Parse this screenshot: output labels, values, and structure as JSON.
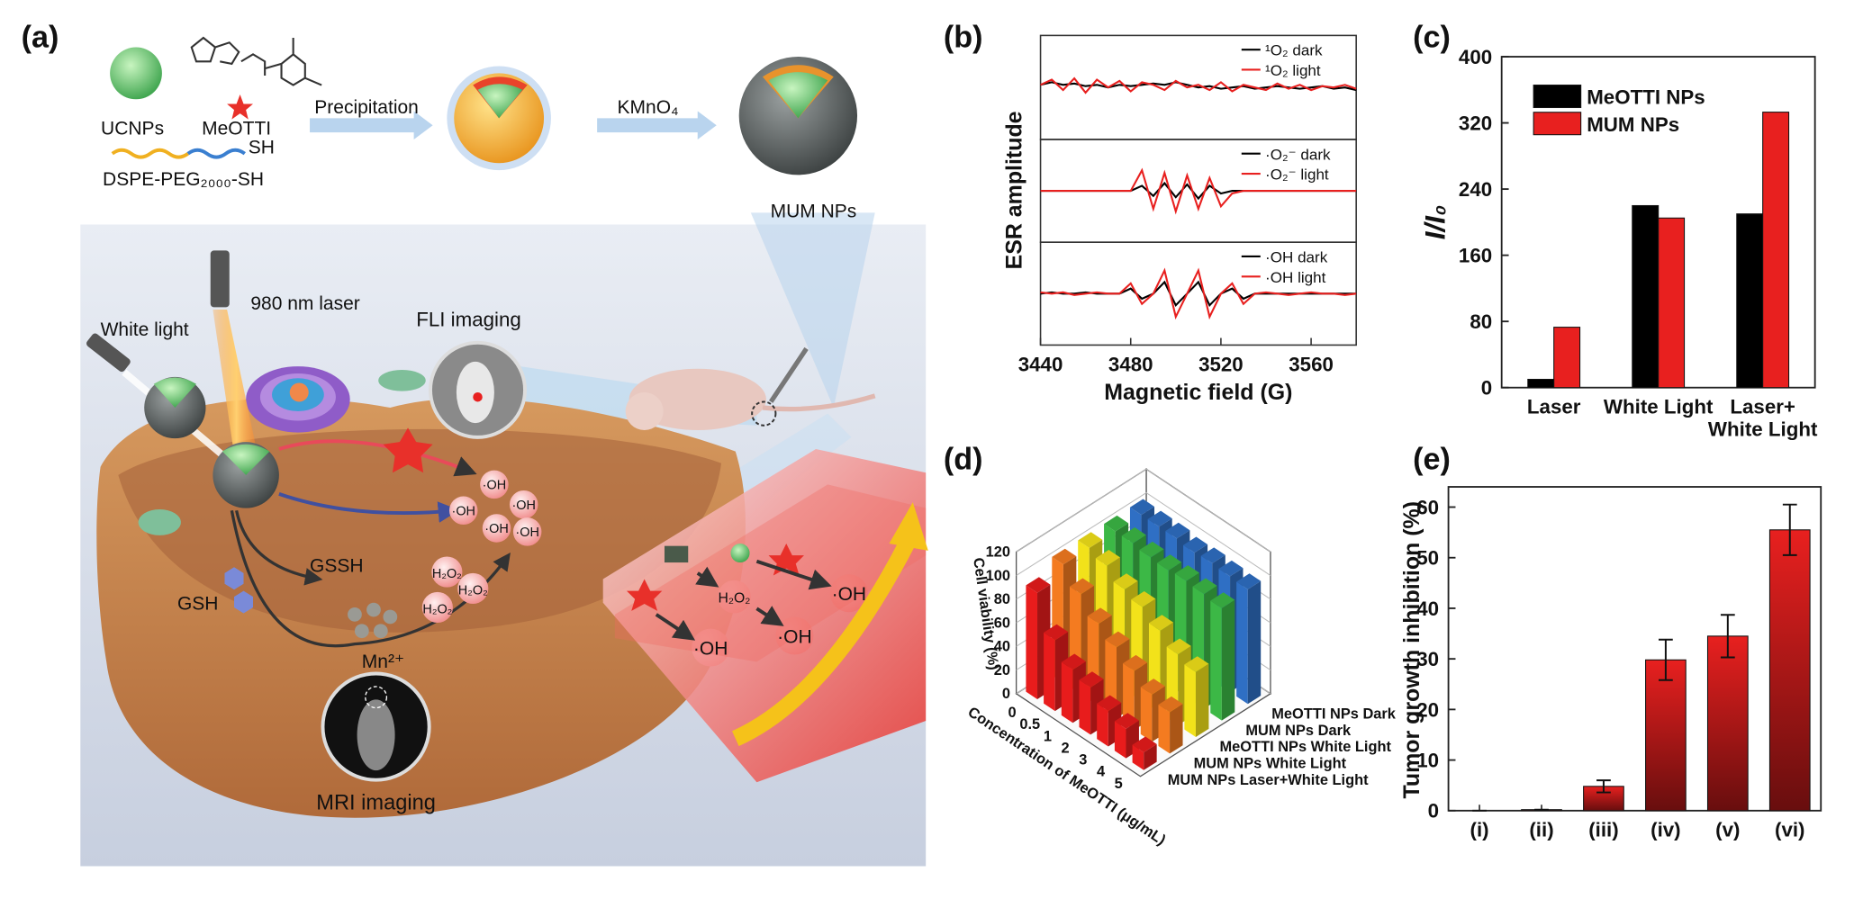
{
  "illustration": {
    "label": "(a)",
    "ucnps": "UCNPs",
    "meotti": "MeOTTI",
    "sh": "SH",
    "dspe": "DSPE-PEG₂₀₀₀-SH",
    "precipitation": "Precipitation",
    "kmno4": "KMnO₄",
    "mum_nps": "MUM NPs",
    "laser": "980 nm laser",
    "white_light": "White light",
    "fli": "FLI imaging",
    "gssh": "GSSH",
    "gsh": "GSH",
    "mn": "Mn²⁺",
    "h2o2": [
      "H₂O₂",
      "H₂O₂",
      "H₂O₂",
      "H₂O₂"
    ],
    "oh": [
      "·OH",
      "·OH",
      "·OH",
      "·OH",
      "·OH",
      "·OH",
      "·OH",
      "·OH"
    ],
    "mri": "MRI imaging"
  },
  "chart_data": [
    {
      "label": "(b)",
      "type": "esr",
      "y_label": "ESR amplitude",
      "x_label": "Magnetic field (G)",
      "x": [
        3440,
        3445,
        3450,
        3455,
        3460,
        3465,
        3470,
        3475,
        3480,
        3485,
        3490,
        3495,
        3500,
        3505,
        3510,
        3515,
        3520,
        3525,
        3530,
        3535,
        3540,
        3545,
        3550,
        3555,
        3560,
        3565,
        3570,
        3575,
        3580
      ],
      "xlim": [
        3440,
        3580
      ],
      "xticks": [
        3440,
        3480,
        3520,
        3560
      ],
      "panels": [
        {
          "ylim": [
            -2,
            2
          ],
          "series": [
            {
              "name": "¹O₂ dark",
              "color": "#000000",
              "values": [
                0.1,
                0.2,
                0.1,
                0.15,
                0.05,
                0.1,
                0.0,
                0.1,
                0.05,
                0.1,
                0.15,
                0.1,
                0.2,
                0.1,
                0.0,
                0.05,
                -0.05,
                0.0,
                0.05,
                -0.05,
                0.0,
                0.05,
                0.0,
                -0.05,
                0.0,
                0.05,
                -0.05,
                0.0,
                -0.1
              ]
            },
            {
              "name": "¹O₂ light",
              "color": "#e8201f",
              "values": [
                0.1,
                0.3,
                -0.1,
                0.35,
                -0.2,
                0.3,
                0.0,
                0.25,
                -0.15,
                0.2,
                0.1,
                -0.1,
                0.25,
                0.0,
                0.1,
                -0.1,
                0.2,
                -0.15,
                0.1,
                0.0,
                -0.1,
                0.15,
                -0.05,
                0.1,
                -0.1,
                0.05,
                0.0,
                0.1,
                -0.05
              ]
            }
          ]
        },
        {
          "ylim": [
            -2,
            2
          ],
          "series": [
            {
              "name": "·O₂⁻ dark",
              "color": "#000000",
              "values": [
                0,
                0,
                0,
                0,
                0,
                0,
                0,
                0,
                0,
                0.2,
                -0.2,
                0.3,
                -0.25,
                0.25,
                -0.3,
                0.2,
                -0.1,
                0,
                0,
                0,
                0,
                0,
                0,
                0,
                0,
                0,
                0,
                0,
                0
              ]
            },
            {
              "name": "·O₂⁻ light",
              "color": "#e8201f",
              "values": [
                0,
                0,
                0,
                0,
                0,
                0,
                0,
                0,
                0,
                0.8,
                -0.7,
                0.7,
                -0.8,
                0.6,
                -0.7,
                0.5,
                -0.6,
                -0.1,
                0,
                0,
                0,
                0,
                0,
                0,
                0,
                0,
                0,
                0,
                0
              ]
            }
          ]
        },
        {
          "ylim": [
            -2,
            2
          ],
          "series": [
            {
              "name": "·OH dark",
              "color": "#000000",
              "values": [
                0,
                0.05,
                0,
                0,
                0.05,
                0,
                0,
                0,
                0.2,
                -0.2,
                0,
                0.45,
                -0.45,
                0,
                0.45,
                -0.45,
                0,
                0.2,
                -0.2,
                0,
                0,
                0,
                0,
                0,
                0,
                0,
                0,
                0,
                0
              ]
            },
            {
              "name": "·OH light",
              "color": "#e8201f",
              "values": [
                0.05,
                0,
                0.05,
                -0.05,
                0,
                0.05,
                0,
                0,
                0.4,
                -0.4,
                0,
                0.9,
                -0.9,
                0,
                0.9,
                -0.9,
                0,
                0.4,
                -0.4,
                0,
                0.05,
                0,
                -0.05,
                0,
                0.05,
                0,
                0,
                -0.05,
                0
              ]
            }
          ]
        }
      ]
    },
    {
      "label": "(c)",
      "type": "bar",
      "y_label": "I/I₀",
      "categories": [
        "Laser",
        "White Light",
        "Laser+\nWhite Light"
      ],
      "series": [
        {
          "name": "MeOTTI NPs",
          "color": "#000000",
          "values": [
            10,
            220,
            210
          ]
        },
        {
          "name": "MUM NPs",
          "color": "#e8201f",
          "values": [
            73,
            205,
            333
          ]
        }
      ],
      "ylim": [
        0,
        400
      ],
      "yticks": [
        0,
        80,
        160,
        240,
        320,
        400
      ],
      "legend": "upper left"
    },
    {
      "label": "(d)",
      "type": "bar3d",
      "z_label": "Cell viability (%)",
      "x_label": "Concentration of MeOTTI (μg/mL)",
      "categories": [
        "0",
        "0.5",
        "1",
        "2",
        "3",
        "4",
        "5"
      ],
      "series": [
        {
          "name": "MUM NPs Laser+White Light",
          "color": "#e81c1c",
          "values": [
            90,
            60,
            45,
            40,
            30,
            25,
            15
          ]
        },
        {
          "name": "MUM NPs White Light",
          "color": "#f47b20",
          "values": [
            100,
            85,
            70,
            60,
            50,
            40,
            35
          ]
        },
        {
          "name": "MeOTTI NPs White Light",
          "color": "#f2e21a",
          "values": [
            100,
            95,
            85,
            80,
            70,
            60,
            55
          ]
        },
        {
          "name": "MUM NPs Dark",
          "color": "#3cb846",
          "values": [
            100,
            100,
            98,
            97,
            98,
            97,
            95
          ]
        },
        {
          "name": "MeOTTI NPs Dark",
          "color": "#2f6fc4",
          "values": [
            100,
            100,
            100,
            98,
            99,
            98,
            97
          ]
        }
      ],
      "zlim": [
        0,
        120
      ],
      "zticks": [
        0,
        20,
        40,
        60,
        80,
        100,
        120
      ]
    },
    {
      "label": "(e)",
      "type": "bar",
      "y_label": "Tumor growth inhibition (%)",
      "categories": [
        "(i)",
        "(ii)",
        "(iii)",
        "(iv)",
        "(v)",
        "(vi)"
      ],
      "values": [
        0,
        0.2,
        4.8,
        29.8,
        34.5,
        55.5
      ],
      "errors": [
        0,
        0,
        1.2,
        4,
        4.2,
        5
      ],
      "color": "#e8201f",
      "ylim": [
        0,
        64
      ],
      "yticks": [
        0,
        10,
        20,
        30,
        40,
        50,
        60
      ]
    }
  ]
}
